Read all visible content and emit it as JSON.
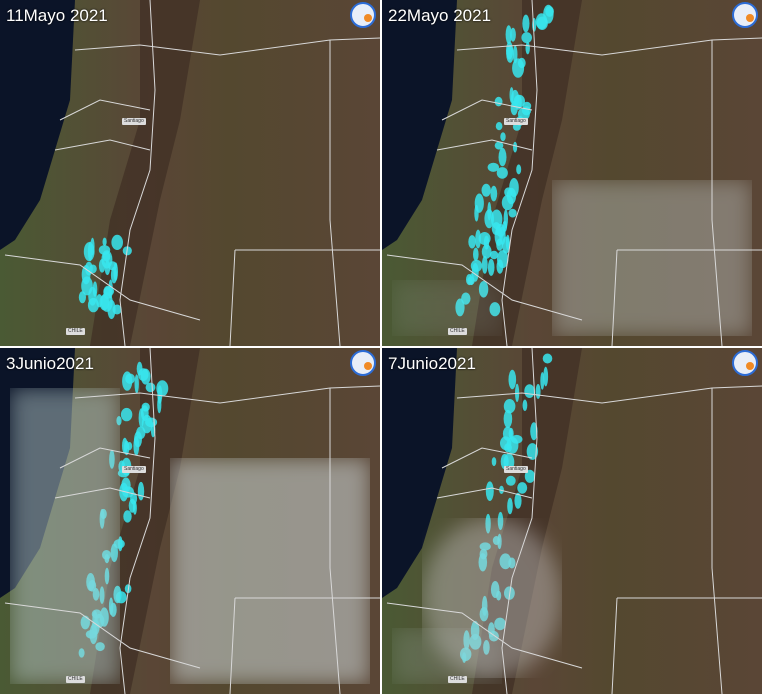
{
  "panels": [
    {
      "date": "11Mayo 2021",
      "city_label": "Santiago",
      "country_label": "CHILE",
      "snow": 0.25,
      "cloud_east": 0,
      "cloud_west": 0,
      "cloud_south": 0
    },
    {
      "date": "22Mayo 2021",
      "city_label": "Santiago",
      "country_label": "CHILE",
      "snow": 1,
      "cloud_east": 0.6,
      "cloud_west": 0.2,
      "cloud_south": 0
    },
    {
      "date": "3Junio2021",
      "city_label": "Santiago",
      "country_label": "CHILE",
      "snow": 0.8,
      "cloud_east": 0.9,
      "cloud_west": 0.8,
      "cloud_south": 0
    },
    {
      "date": "7Junio2021",
      "city_label": "Santiago",
      "country_label": "CHILE",
      "snow": 0.6,
      "cloud_east": 0,
      "cloud_west": 0.3,
      "cloud_south": 0.7
    }
  ],
  "logo": "satellite-agency-logo",
  "colors": {
    "ocean": "#0b1428",
    "land_brown": "#5a4636",
    "land_green": "#4a5a34",
    "snow": "#38e6ee",
    "border": "#d8d8d8"
  }
}
